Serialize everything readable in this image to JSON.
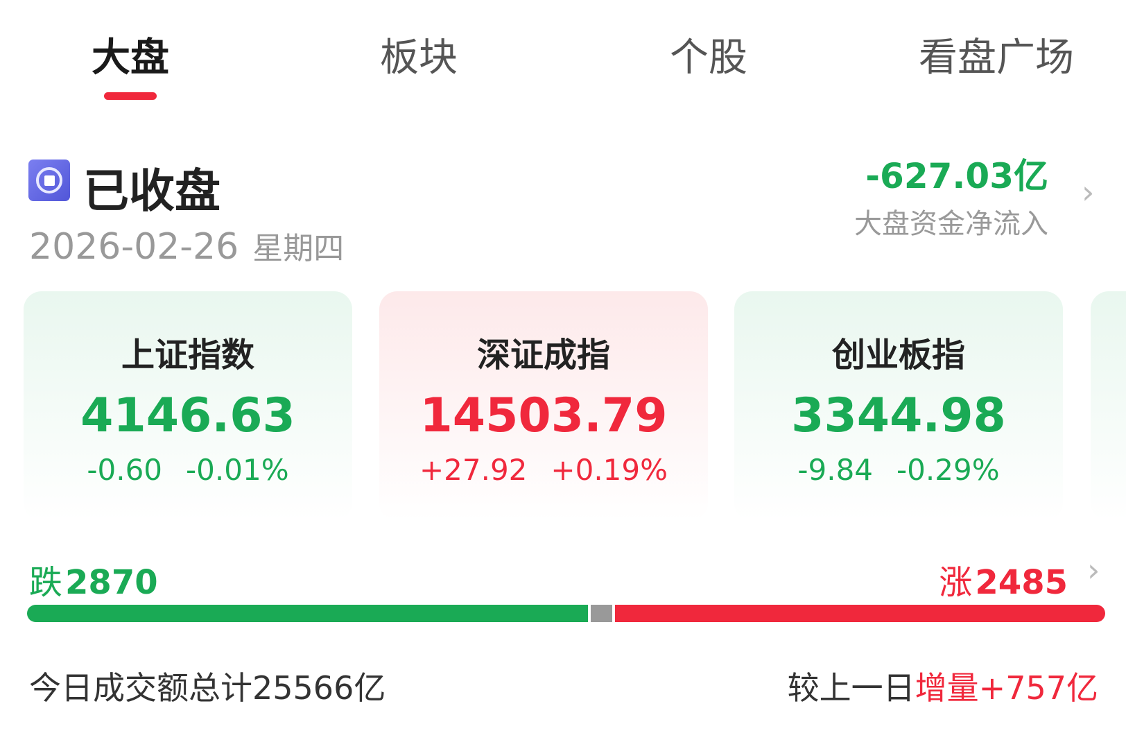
{
  "tabs": [
    {
      "label": "大盘",
      "active": true
    },
    {
      "label": "板块"
    },
    {
      "label": "个股"
    },
    {
      "label": "看盘广场"
    }
  ],
  "market": {
    "status": "已收盘",
    "status_icon": "stop-circle-icon",
    "date": "2026-02-26",
    "weekday": "星期四",
    "net_flow": "-627.03亿",
    "net_flow_label": "大盘资金净流入"
  },
  "indices": [
    {
      "name": "上证指数",
      "value": "4146.63",
      "change": "-0.60",
      "pct": "-0.01%",
      "trend": "down"
    },
    {
      "name": "深证成指",
      "value": "14503.79",
      "change": "+27.92",
      "pct": "+0.19%",
      "trend": "up"
    },
    {
      "name": "创业板指",
      "value": "3344.98",
      "change": "-9.84",
      "pct": "-0.29%",
      "trend": "down"
    }
  ],
  "breadth": {
    "down_label": "跌",
    "down": "2870",
    "up_label": "涨",
    "up": "2485",
    "down_fraction": 0.52,
    "flat_fraction": 0.02,
    "up_fraction": 0.46
  },
  "turnover": {
    "label": "今日成交额总计",
    "value": "25566亿",
    "compare_label": "较上一日",
    "delta_label": "增量",
    "delta": "+757亿"
  },
  "colors": {
    "up": "#f0283c",
    "down": "#1aaa55",
    "flat": "#999999"
  }
}
